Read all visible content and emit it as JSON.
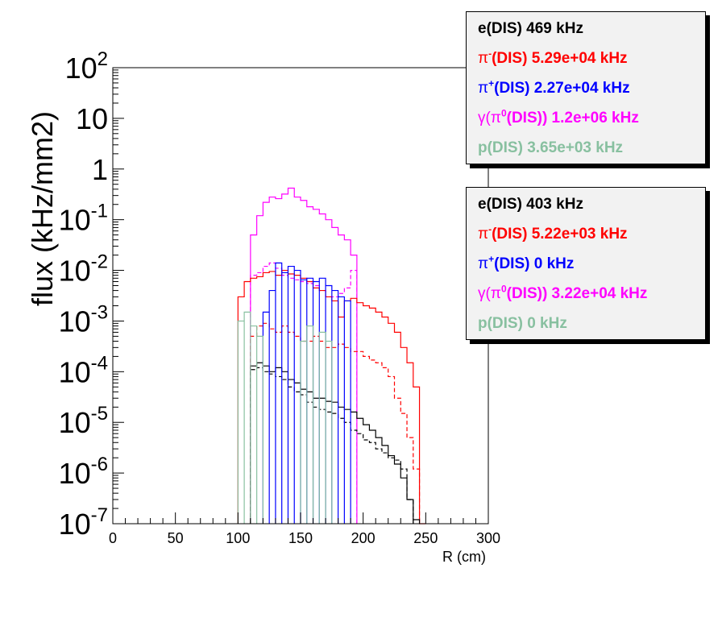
{
  "chart_data": {
    "type": "histogram",
    "xlabel": "R (cm)",
    "ylabel": "flux (kHz/mm2)",
    "xlim": [
      0,
      300
    ],
    "ylim": [
      1e-07,
      100
    ],
    "yscale": "log",
    "grid": false,
    "bin_width_cm": 5,
    "x_ticks": [
      0,
      50,
      100,
      150,
      200,
      250,
      300
    ],
    "y_ticks": [
      {
        "exp": "2",
        "value": 100
      },
      {
        "exp": "",
        "value": 10,
        "label": "10"
      },
      {
        "exp": "",
        "value": 1,
        "label": "1"
      },
      {
        "exp": "-1",
        "value": 0.1
      },
      {
        "exp": "-2",
        "value": 0.01
      },
      {
        "exp": "-3",
        "value": 0.001
      },
      {
        "exp": "-4",
        "value": 0.0001
      },
      {
        "exp": "-5",
        "value": 1e-05
      },
      {
        "exp": "-6",
        "value": 1e-06
      },
      {
        "exp": "-7",
        "value": 1e-07
      }
    ],
    "series": [
      {
        "color": "#ff00ff",
        "dash": false,
        "x0": 110,
        "width": 5,
        "values": [
          0.05,
          0.12,
          0.22,
          0.28,
          0.26,
          0.32,
          0.42,
          0.28,
          0.24,
          0.18,
          0.16,
          0.13,
          0.1,
          0.07,
          0.05,
          0.04,
          0.02
        ]
      },
      {
        "color": "#ff00ff",
        "dash": true,
        "x0": 110,
        "width": 5,
        "values": [
          0.008,
          0.009,
          0.012,
          0.014,
          0.011,
          0.008,
          0.007,
          0.0065,
          0.006,
          0.0055,
          0.005,
          0.004,
          0.003,
          0.003,
          0.0035,
          0.0045,
          0.01
        ]
      },
      {
        "color": "#ff0000",
        "dash": false,
        "x0": 100,
        "width": 5,
        "values": [
          0.003,
          0.006,
          0.007,
          0.0075,
          0.009,
          0.0095,
          0.008,
          0.01,
          0.0085,
          0.008,
          0.007,
          0.006,
          0.0045,
          0.004,
          0.003,
          0.0025,
          0.0012,
          0.0025,
          0.0028,
          0.0023,
          0.002,
          0.0018,
          0.0015,
          0.0012,
          0.0009,
          0.0006,
          0.0003,
          0.00015,
          5e-05,
          null
        ]
      },
      {
        "color": "#ff0000",
        "dash": true,
        "x0": 110,
        "width": 5,
        "values": [
          0.0005,
          0.0008,
          0.0009,
          0.0007,
          0.0006,
          0.0008,
          0.0006,
          0.0005,
          0.0004,
          0.0004,
          0.0005,
          0.0004,
          0.0003,
          0.0003,
          0.00035,
          0.0003,
          0.00025,
          0.00025,
          0.0002,
          0.00017,
          0.00015,
          0.00012,
          8e-05,
          3e-05,
          1.5e-05,
          5e-06,
          1.2e-06
        ]
      },
      {
        "color": "#000000",
        "dash": false,
        "x0": 110,
        "width": 5,
        "values": [
          0.00013,
          0.00015,
          0.00013,
          0.0001,
          0.00012,
          0.0001,
          7e-05,
          6e-05,
          4.5e-05,
          4e-05,
          3e-05,
          3e-05,
          2.6e-05,
          2.5e-05,
          2e-05,
          1.8e-05,
          1.6e-05,
          1.2e-05,
          9e-06,
          7e-06,
          5e-06,
          3.5e-06,
          2.2e-06,
          1.5e-06,
          8e-07,
          3e-07,
          1.2e-07
        ]
      },
      {
        "color": "#000000",
        "dash": true,
        "x0": 110,
        "width": 5,
        "values": [
          0.00011,
          0.00012,
          0.0001,
          9e-05,
          8e-05,
          7e-05,
          5e-05,
          4e-05,
          3.5e-05,
          2.5e-05,
          2e-05,
          1.8e-05,
          1.6e-05,
          1.5e-05,
          1.2e-05,
          1e-05,
          7e-06,
          6e-06,
          4.5e-06,
          4e-06,
          3e-06,
          2.5e-06,
          2e-06,
          1.8e-06,
          1.2e-06,
          3e-07
        ]
      },
      {
        "color": "#0000ff",
        "dash": false,
        "spikes": true,
        "width": 5,
        "bins": [
          [
            120,
            0.0015
          ],
          [
            125,
            0.004
          ],
          [
            130,
            0.014
          ],
          [
            135,
            0.009
          ],
          [
            140,
            0.012
          ],
          [
            145,
            0.01
          ],
          [
            150,
            0.0065
          ],
          [
            155,
            0.007
          ],
          [
            160,
            0.006
          ],
          [
            165,
            0.007
          ],
          [
            170,
            0.005
          ],
          [
            175,
            0.004
          ],
          [
            180,
            0.003
          ],
          [
            185,
            0.0025
          ]
        ]
      },
      {
        "color": "#88c0a0",
        "dash": false,
        "spikes": true,
        "width": 5,
        "bins": [
          [
            100,
            0.001
          ],
          [
            105,
            0.0015
          ],
          [
            110,
            0.0008
          ],
          [
            115,
            0.0005
          ],
          [
            150,
            0.0004
          ],
          [
            155,
            0.0008
          ],
          [
            165,
            0.0006
          ],
          [
            170,
            0.0004
          ]
        ]
      }
    ]
  },
  "legend_top": [
    {
      "text": "e(DIS)  469 kHz",
      "color": "#000000",
      "sym": "",
      "sup": "",
      "sup2": ""
    },
    {
      "text": "(DIS)  5.29e+04 kHz",
      "color": "#ff0000",
      "sym": "π",
      "sup": "-",
      "sup2": ""
    },
    {
      "text": "(DIS)  2.27e+04 kHz",
      "color": "#0000ff",
      "sym": "π",
      "sup": "+",
      "sup2": ""
    },
    {
      "text": "(DIS))  1.2e+06 kHz",
      "color": "#ff00ff",
      "sym": "γ(π",
      "sup": "0",
      "sup2": ""
    },
    {
      "text": "p(DIS)  3.65e+03 kHz",
      "color": "#88c0a0",
      "sym": "",
      "sup": "",
      "sup2": ""
    }
  ],
  "legend_bottom": [
    {
      "text": "e(DIS)  403 kHz",
      "color": "#000000",
      "sym": "",
      "sup": ""
    },
    {
      "text": "(DIS)  5.22e+03 kHz",
      "color": "#ff0000",
      "sym": "π",
      "sup": "-"
    },
    {
      "text": "(DIS)  0 kHz",
      "color": "#0000ff",
      "sym": "π",
      "sup": "+"
    },
    {
      "text": "(DIS))  3.22e+04 kHz",
      "color": "#ff00ff",
      "sym": "γ(π",
      "sup": "0"
    },
    {
      "text": "p(DIS)  0 kHz",
      "color": "#88c0a0",
      "sym": "",
      "sup": ""
    }
  ]
}
